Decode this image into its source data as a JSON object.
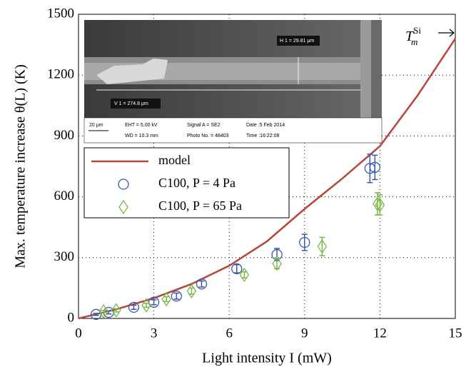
{
  "chart_data": {
    "type": "scatter",
    "x_label": "Light intensity I (mW)",
    "y_label": "Max. temperature increase θ(L) (K)",
    "xlim": [
      0,
      15
    ],
    "xticks": [
      0,
      3,
      6,
      9,
      12,
      15
    ],
    "ylim": [
      0,
      1500
    ],
    "yticks": [
      0,
      300,
      600,
      900,
      1200,
      1500
    ],
    "grid": true,
    "legend": "upper left",
    "annotation": {
      "text": "T",
      "sub": "m",
      "sup": "Si"
    },
    "inset_texts": [
      "H 1 = 29.81 μm",
      "V 1 = 274.8 μm",
      "20 μm",
      "EHT = 5.00 kV",
      "WD = 10.3 mm",
      "Signal A = SE2",
      "Photo No. = 48403",
      "Date :5 Feb 2014",
      "Time :16:22:08"
    ],
    "series": [
      {
        "name": "model",
        "kind": "line",
        "color": "#b8443a",
        "x": [
          0,
          1.5,
          3,
          4.5,
          6,
          7.5,
          9,
          10.5,
          12,
          13.5,
          15
        ],
        "values": [
          0,
          45,
          100,
          170,
          260,
          380,
          540,
          690,
          850,
          1100,
          1380
        ]
      },
      {
        "name": "C100, P = 4 Pa",
        "kind": "circle",
        "color": "#3a5aa8",
        "x": [
          0.7,
          1.2,
          2.2,
          3.0,
          3.9,
          4.9,
          6.3,
          7.9,
          9.0,
          11.6,
          11.8
        ],
        "values": [
          20,
          30,
          55,
          80,
          110,
          170,
          245,
          315,
          375,
          740,
          745
        ],
        "errors": [
          5,
          8,
          10,
          12,
          15,
          15,
          20,
          30,
          40,
          70,
          60
        ]
      },
      {
        "name": "C100, P = 65 Pa",
        "kind": "diamond",
        "color": "#7ab648",
        "x": [
          1.0,
          1.5,
          2.7,
          3.5,
          4.5,
          6.6,
          7.9,
          9.7,
          11.9,
          12.0
        ],
        "values": [
          35,
          40,
          65,
          95,
          135,
          215,
          270,
          355,
          565,
          560
        ],
        "errors": [
          5,
          8,
          10,
          12,
          15,
          15,
          25,
          45,
          55,
          50
        ]
      }
    ]
  }
}
